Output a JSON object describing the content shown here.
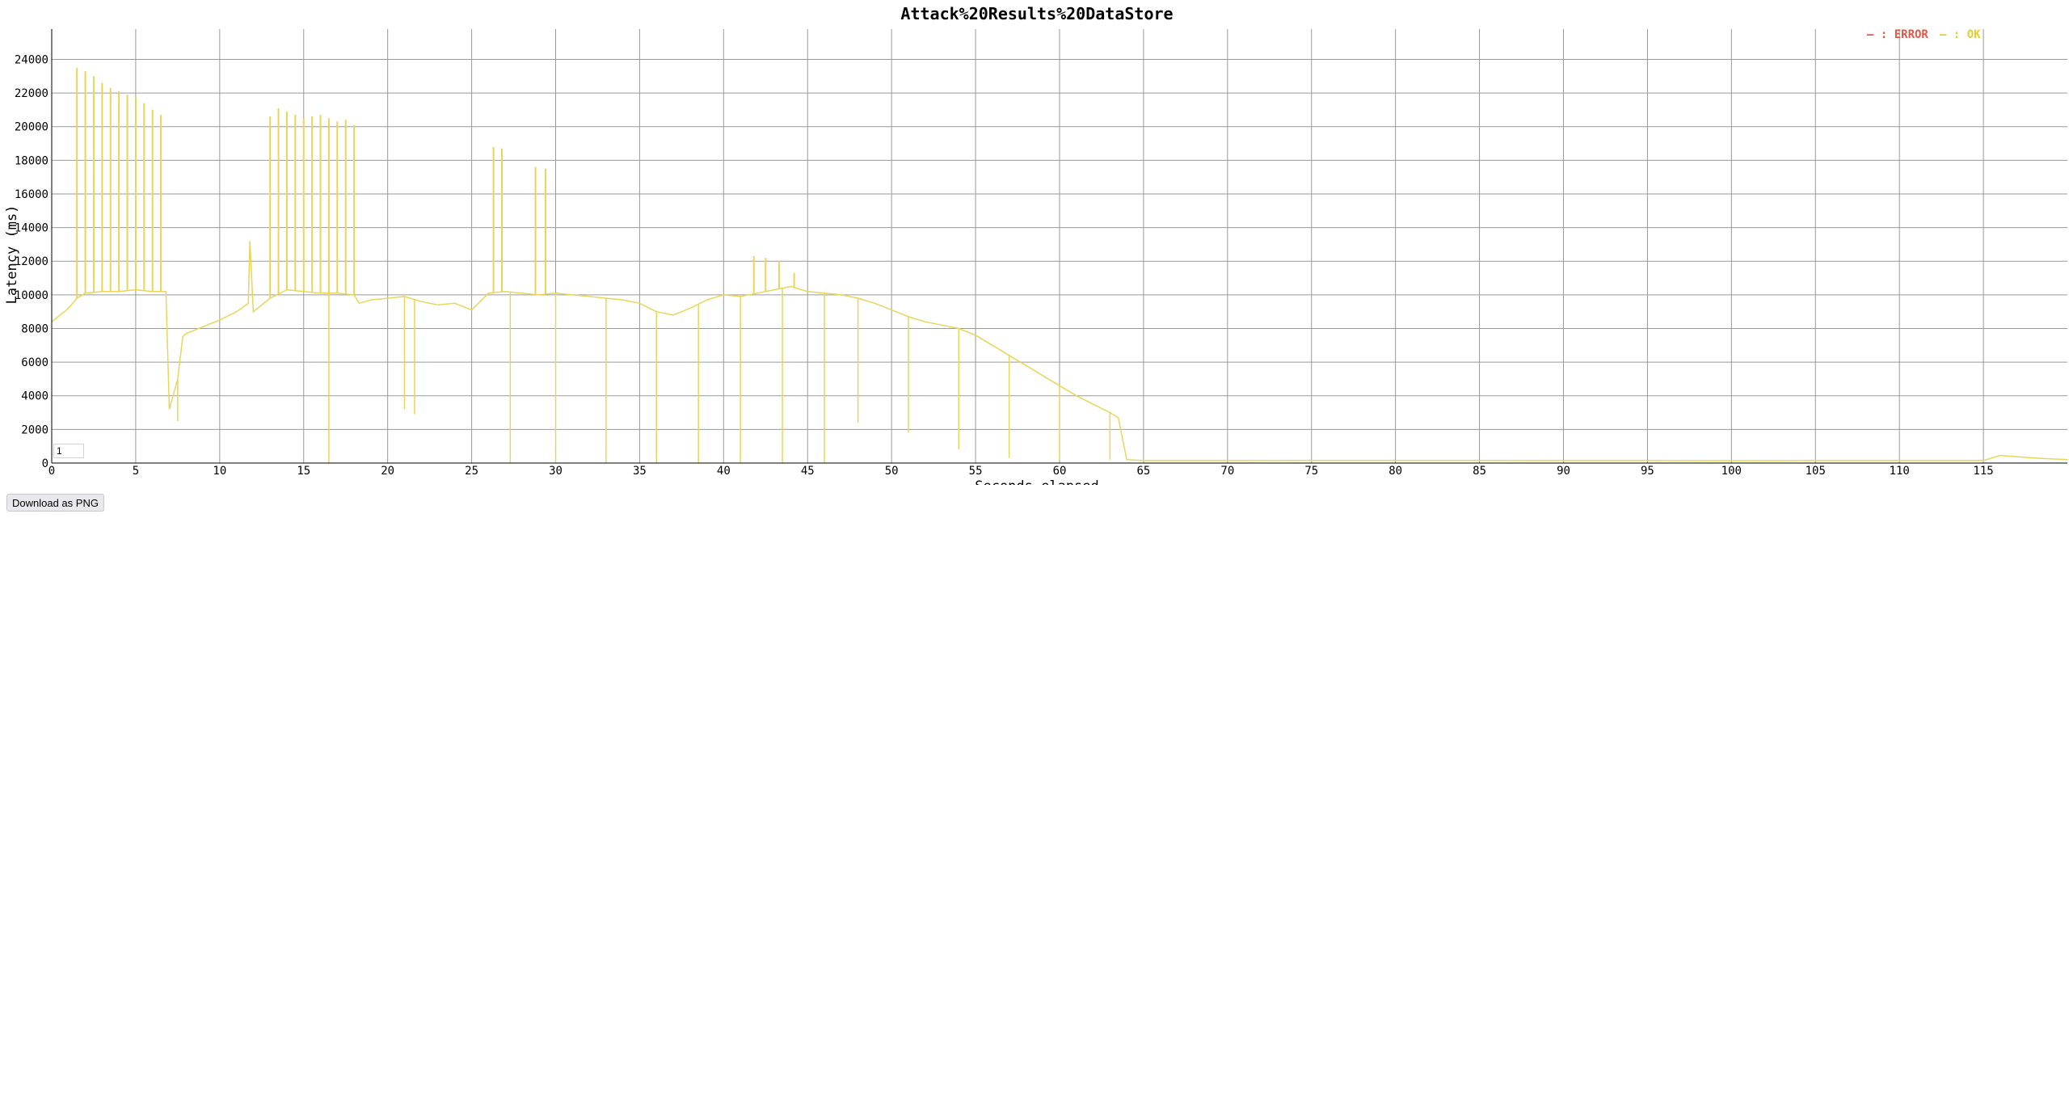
{
  "chart_data": {
    "type": "line",
    "title": "Attack%20Results%20DataStore",
    "xlabel": "Seconds elapsed",
    "ylabel": "Latency (ms)",
    "xlim": [
      0,
      120
    ],
    "ylim": [
      0,
      25800
    ],
    "x_ticks": [
      "0",
      "5",
      "10",
      "15",
      "20",
      "25",
      "30",
      "35",
      "40",
      "45",
      "50",
      "55",
      "60",
      "65",
      "70",
      "75",
      "80",
      "85",
      "90",
      "95",
      "100",
      "105",
      "110",
      "115"
    ],
    "y_ticks": [
      "0",
      "2000",
      "4000",
      "6000",
      "8000",
      "10000",
      "12000",
      "14000",
      "16000",
      "18000",
      "20000",
      "22000",
      "24000"
    ],
    "grid": true,
    "legend_position": "top-right",
    "legend": [
      {
        "label": "— : ERROR",
        "color": "#e0584a"
      },
      {
        "label": "— : OK",
        "color": "#e6cc2e"
      }
    ],
    "series": [
      {
        "name": "OK",
        "color": "#e8d65a",
        "x": [
          0,
          1,
          1.5,
          2,
          3,
          4,
          5,
          6,
          6.8,
          7.0,
          7.5,
          7.8,
          8,
          9,
          10,
          11,
          11.7,
          11.8,
          12,
          13,
          14,
          15,
          16,
          17,
          18,
          18.3,
          19,
          20,
          21,
          22,
          23,
          24,
          25,
          26,
          27,
          28,
          29,
          30,
          31,
          32,
          33,
          34,
          35,
          36,
          37,
          38,
          39,
          40,
          41,
          42,
          43,
          44,
          45,
          46,
          47,
          48,
          49,
          50,
          51,
          52,
          53,
          54,
          55,
          56,
          57,
          58,
          59,
          60,
          61,
          62,
          63,
          63.5,
          64,
          65,
          70,
          75,
          80,
          85,
          90,
          95,
          100,
          105,
          110,
          115,
          116,
          118,
          120
        ],
        "y": [
          8400,
          9200,
          9800,
          10100,
          10200,
          10200,
          10300,
          10200,
          10200,
          3200,
          5000,
          7500,
          7700,
          8100,
          8500,
          9000,
          9500,
          13200,
          9000,
          9800,
          10300,
          10200,
          10100,
          10100,
          10000,
          9500,
          9700,
          9800,
          9900,
          9600,
          9400,
          9500,
          9100,
          10100,
          10200,
          10100,
          10000,
          10100,
          10000,
          9900,
          9800,
          9700,
          9500,
          9000,
          8800,
          9200,
          9700,
          10000,
          9900,
          10100,
          10300,
          10500,
          10200,
          10100,
          10000,
          9800,
          9500,
          9100,
          8700,
          8400,
          8200,
          8000,
          7600,
          7000,
          6400,
          5800,
          5200,
          4600,
          4000,
          3500,
          3000,
          2700,
          200,
          150,
          150,
          160,
          160,
          160,
          150,
          150,
          140,
          150,
          150,
          150,
          450,
          300,
          200
        ]
      },
      {
        "name": "OK (spikes)",
        "color": "#e8d65a",
        "spikes": [
          {
            "x": 1.5,
            "y": 23500
          },
          {
            "x": 2.0,
            "y": 23300
          },
          {
            "x": 2.5,
            "y": 23000
          },
          {
            "x": 3.0,
            "y": 22600
          },
          {
            "x": 3.5,
            "y": 22300
          },
          {
            "x": 4.0,
            "y": 22100
          },
          {
            "x": 4.5,
            "y": 21900
          },
          {
            "x": 5.0,
            "y": 21800
          },
          {
            "x": 5.5,
            "y": 21400
          },
          {
            "x": 6.0,
            "y": 21000
          },
          {
            "x": 6.5,
            "y": 20700
          },
          {
            "x": 13.0,
            "y": 20600
          },
          {
            "x": 13.5,
            "y": 21100
          },
          {
            "x": 14.0,
            "y": 20900
          },
          {
            "x": 14.5,
            "y": 20700
          },
          {
            "x": 15.0,
            "y": 20500
          },
          {
            "x": 15.5,
            "y": 20600
          },
          {
            "x": 16.0,
            "y": 20700
          },
          {
            "x": 16.5,
            "y": 20500
          },
          {
            "x": 17.0,
            "y": 20300
          },
          {
            "x": 17.5,
            "y": 20400
          },
          {
            "x": 18.0,
            "y": 20100
          },
          {
            "x": 26.3,
            "y": 18800
          },
          {
            "x": 26.8,
            "y": 18700
          },
          {
            "x": 28.8,
            "y": 17600
          },
          {
            "x": 29.4,
            "y": 17500
          },
          {
            "x": 41.8,
            "y": 12300
          },
          {
            "x": 42.5,
            "y": 12200
          },
          {
            "x": 43.3,
            "y": 12000
          },
          {
            "x": 44.2,
            "y": 11300
          }
        ],
        "dips": [
          {
            "x": 7.5,
            "y": 2500
          },
          {
            "x": 16.5,
            "y": 0
          },
          {
            "x": 21.0,
            "y": 3200
          },
          {
            "x": 21.6,
            "y": 2900
          },
          {
            "x": 27.3,
            "y": 0
          },
          {
            "x": 30.0,
            "y": 0
          },
          {
            "x": 33.0,
            "y": 0
          },
          {
            "x": 36.0,
            "y": 0
          },
          {
            "x": 38.5,
            "y": 0
          },
          {
            "x": 41.0,
            "y": 0
          },
          {
            "x": 43.5,
            "y": 0
          },
          {
            "x": 46.0,
            "y": 0
          },
          {
            "x": 48.0,
            "y": 2400
          },
          {
            "x": 51.0,
            "y": 1800
          },
          {
            "x": 54.0,
            "y": 800
          },
          {
            "x": 57.0,
            "y": 300
          },
          {
            "x": 60.0,
            "y": 200
          },
          {
            "x": 63.0,
            "y": 200
          }
        ]
      }
    ]
  },
  "controls": {
    "resolution_value": "1",
    "download_label": "Download as PNG"
  }
}
